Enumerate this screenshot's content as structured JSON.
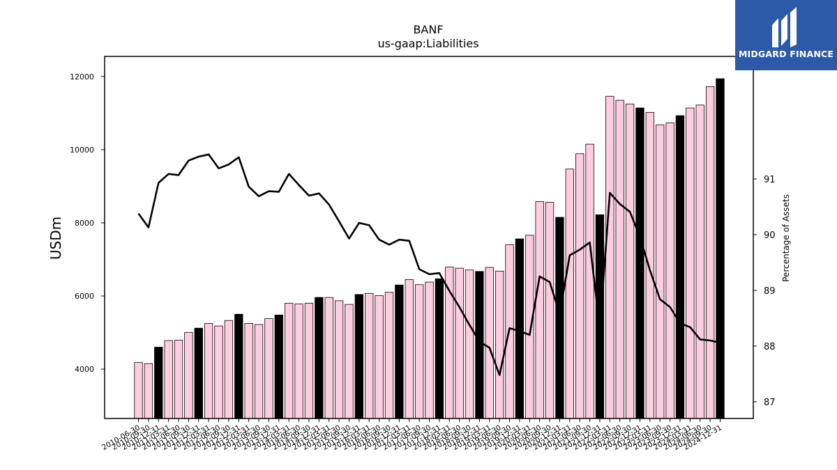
{
  "logo": {
    "brand": "MIDGARD FINANCE",
    "icon": "midgard-logo-icon",
    "bg_color": "#2d5aa8"
  },
  "chart_data": {
    "type": "bar",
    "title": "BANF",
    "subtitle": "us-gaap:Liabilities",
    "ylabel": "USDm",
    "y2label": "Percentage of Assets",
    "ylim": [
      2650,
      12550
    ],
    "y2lim": [
      86.7,
      93.2
    ],
    "yticks": [
      4000,
      6000,
      8000,
      10000,
      12000
    ],
    "y2ticks": [
      87,
      88,
      89,
      90,
      91
    ],
    "colors": {
      "quarter_bar": "#ffcce0",
      "year_end_bar": "#000000",
      "line": "#000000"
    },
    "categories": [
      "2010-06-30",
      "2010-09-30",
      "2010-12-31",
      "2011-03-31",
      "2011-06-30",
      "2011-09-30",
      "2011-12-31",
      "2012-03-31",
      "2012-06-30",
      "2012-09-30",
      "2012-12-31",
      "2013-03-31",
      "2013-06-30",
      "2013-09-30",
      "2013-12-31",
      "2014-03-31",
      "2014-06-30",
      "2014-09-30",
      "2014-12-31",
      "2015-03-31",
      "2015-06-30",
      "2015-09-30",
      "2015-12-31",
      "2016-03-31",
      "2016-06-30",
      "2016-09-30",
      "2016-12-31",
      "2017-03-31",
      "2017-06-30",
      "2017-09-30",
      "2017-12-31",
      "2018-03-31",
      "2018-06-30",
      "2018-09-30",
      "2018-12-31",
      "2019-03-31",
      "2019-06-30",
      "2019-09-30",
      "2019-12-31",
      "2020-03-31",
      "2020-06-30",
      "2020-09-30",
      "2020-12-31",
      "2021-03-31",
      "2021-06-30",
      "2021-09-30",
      "2021-12-31",
      "2022-03-31",
      "2022-06-30",
      "2022-09-30",
      "2022-12-31",
      "2023-03-31",
      "2023-06-30",
      "2023-09-30",
      "2023-12-31",
      "2024-03-31",
      "2024-06-30",
      "2024-09-30",
      "2024-12-31"
    ],
    "tick_labels": [
      "2010-06-30",
      "2010-09-30",
      "2010-12-31",
      "2011-03-31",
      "2011-06-30",
      "2011-09-30",
      "2011-12-31",
      "2012-03-31",
      "2012-06-30",
      "2012-09-30",
      "2012-12-31",
      "2013-03-31",
      "2013-06-30",
      "2013-09-30",
      "2013-12-31",
      "2014-03-31",
      "2014-06-30",
      "2014-09-30",
      "2014-12-31",
      "2015-03-31",
      "2015-06-30",
      "2015-09-30",
      "2015-12-31",
      "2016-03-31",
      "2016-06-30",
      "2016-09-30",
      "2016-12-31",
      "2017-03-31",
      "2017-06-30",
      "2017-09-30",
      "2017-12-31",
      "2018-03-31",
      "2018-06-30",
      "2018-09-30",
      "2018-12-31",
      "2019-03-31",
      "2019-06-30",
      "2019-09-30",
      "2019-12-31",
      "2020-03-31",
      "2020-06-30",
      "2020-09-30",
      "2020-12-31",
      "2021-03-31",
      "2021-06-30",
      "2021-09-30",
      "2021-12-31",
      "2022-03-31",
      "2022-06-30",
      "2022-09-30",
      "2022-12-31",
      "2023-03-31",
      "2023-06-30",
      "2023-09-30",
      "2023-12-31",
      "2024-03-31",
      "2024-06-30",
      "2024-09-30",
      "2024-12-31"
    ],
    "series": [
      {
        "type": "bar",
        "axis": "left",
        "values": [
          4180,
          4150,
          4600,
          4780,
          4790,
          5000,
          5120,
          5250,
          5180,
          5330,
          5500,
          5250,
          5220,
          5380,
          5480,
          5800,
          5780,
          5800,
          5960,
          5960,
          5870,
          5770,
          6040,
          6070,
          6010,
          6100,
          6300,
          6450,
          6310,
          6380,
          6470,
          6790,
          6760,
          6710,
          6670,
          6780,
          6680,
          7400,
          7560,
          7660,
          8580,
          8560,
          8150,
          9470,
          9890,
          10150,
          8220,
          11460,
          11350,
          11250,
          11140,
          11020,
          10680,
          10730,
          10930,
          11140,
          11220,
          11720,
          11940
        ]
      },
      {
        "type": "line",
        "axis": "right",
        "values": [
          90.38,
          90.13,
          90.93,
          91.09,
          91.07,
          91.33,
          91.4,
          91.44,
          91.19,
          91.26,
          91.39,
          90.86,
          90.69,
          90.78,
          90.77,
          91.09,
          90.89,
          90.7,
          90.74,
          90.54,
          90.24,
          89.93,
          90.21,
          90.17,
          89.91,
          89.82,
          89.91,
          89.89,
          89.38,
          89.29,
          89.31,
          88.99,
          88.7,
          88.38,
          88.08,
          87.97,
          87.48,
          88.32,
          88.27,
          88.2,
          89.25,
          89.15,
          88.58,
          89.63,
          89.73,
          89.86,
          88.31,
          90.75,
          90.55,
          90.41,
          89.96,
          89.36,
          88.84,
          88.7,
          88.41,
          88.34,
          88.12,
          88.1,
          88.06
        ]
      }
    ],
    "grid": false,
    "legend": "none"
  }
}
